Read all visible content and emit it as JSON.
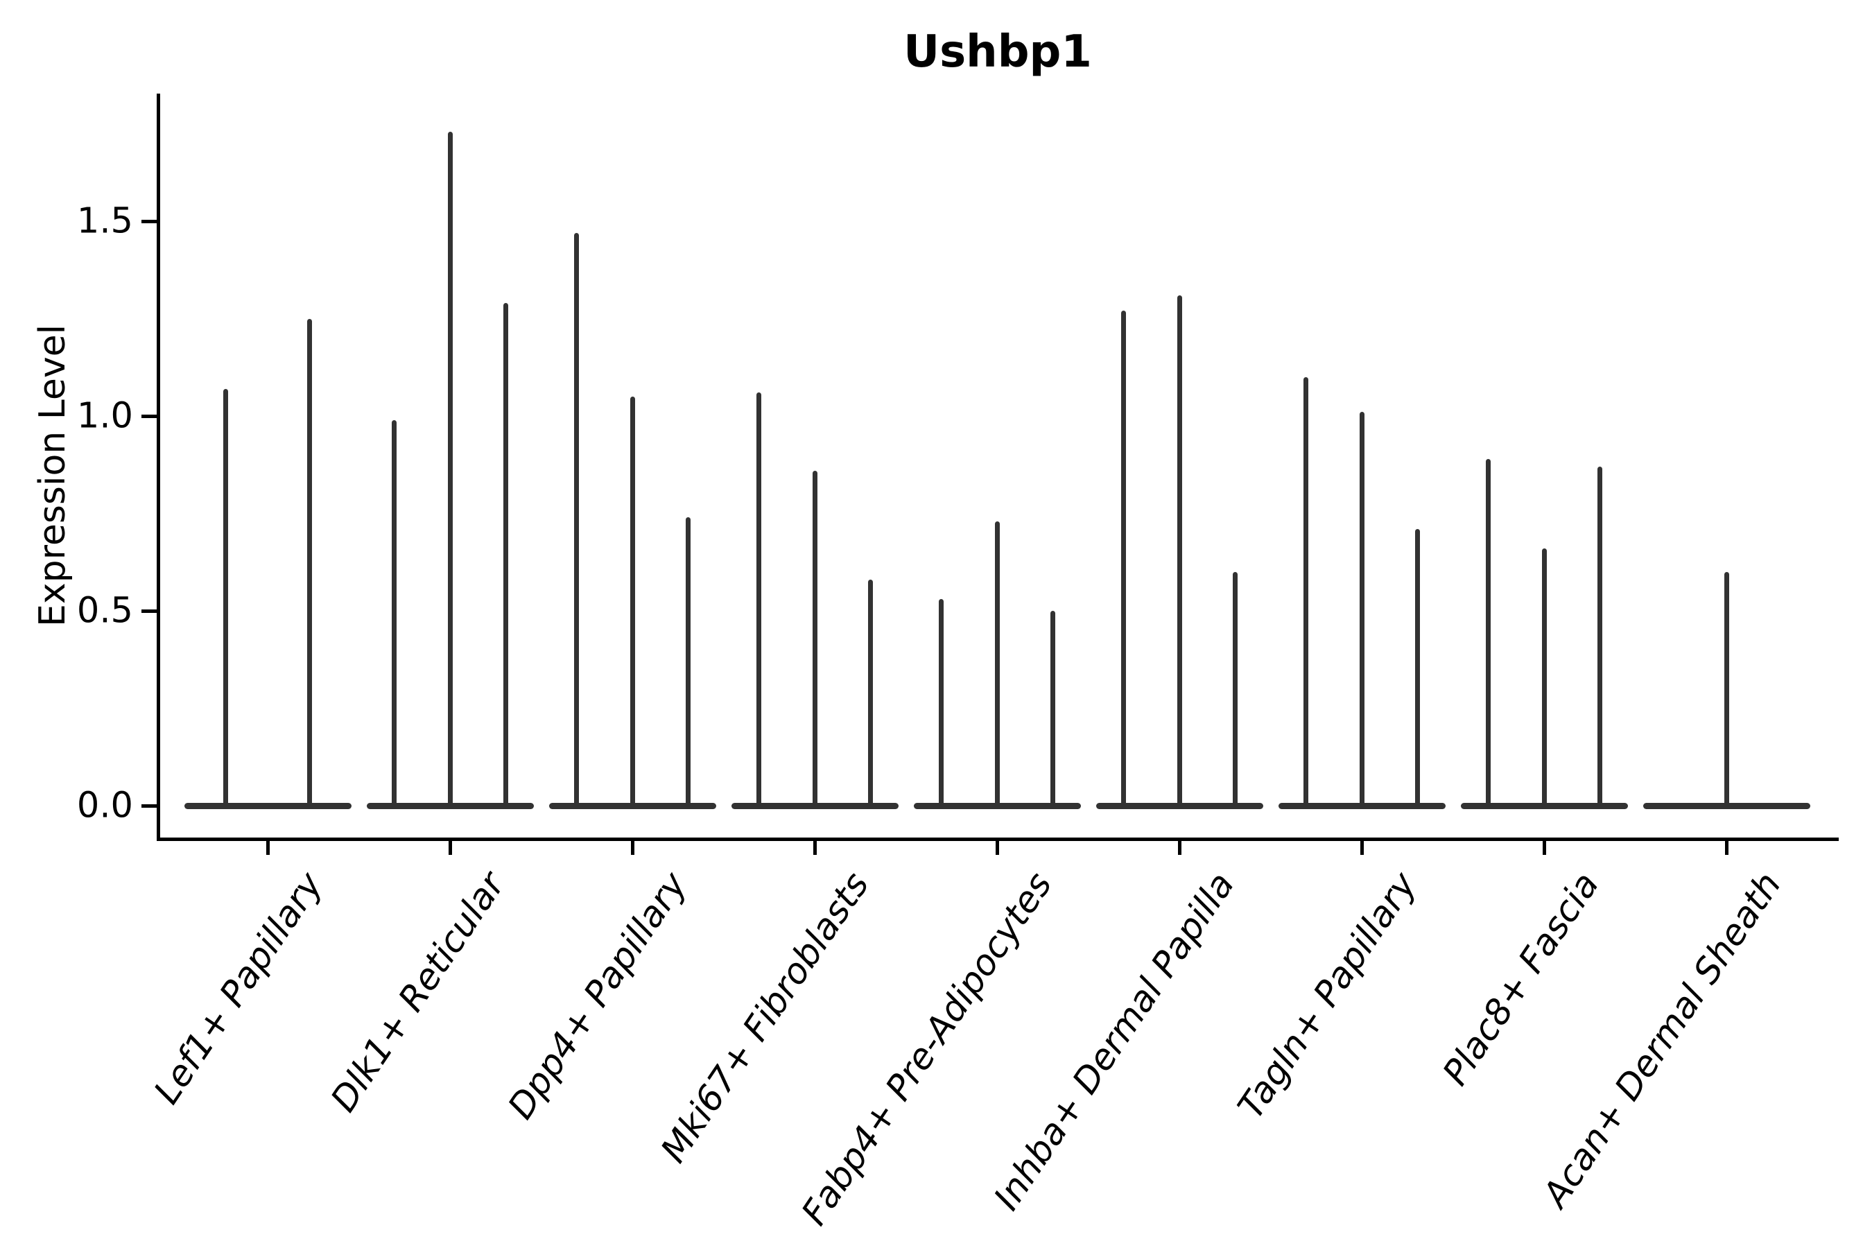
{
  "figure": {
    "title": "Ushbp1"
  },
  "axes": {
    "y_label": "Expression Level",
    "y_tick_labels": [
      "0.0",
      "0.5",
      "1.0",
      "1.5"
    ]
  },
  "chart_data": {
    "type": "violin",
    "title": "Ushbp1",
    "xlabel": "",
    "ylabel": "Expression Level",
    "ylim": [
      -0.09,
      1.83
    ],
    "yticks": [
      0,
      0.5,
      1.0,
      1.5
    ],
    "grid": false,
    "legend_position": "none",
    "violin_color": "#323232",
    "axis_color": "#000000",
    "background_color": "#ffffff",
    "description": "Split violin plot; each violin is a flat near-zero density body at 0 with a thin vertical spike reaching its maximum expression value.",
    "categories": [
      "Lef1+ Papillary",
      "Dlk1+ Reticular",
      "Dpp4+ Papillary",
      "Mki67+ Fibroblasts",
      "Fabp4+ Pre-Adipocytes",
      "Inhba+ Dermal Papilla",
      "Tagln+ Papillary",
      "Plac8+ Fascia",
      "Acan+ Dermal Sheath"
    ],
    "series": [
      {
        "category": "Lef1+ Papillary",
        "violin_maxima": [
          1.07,
          1.25
        ]
      },
      {
        "category": "Dlk1+ Reticular",
        "violin_maxima": [
          0.99,
          1.73,
          1.29
        ]
      },
      {
        "category": "Dpp4+ Papillary",
        "violin_maxima": [
          1.47,
          1.05,
          0.74
        ]
      },
      {
        "category": "Mki67+ Fibroblasts",
        "violin_maxima": [
          1.06,
          0.86,
          0.58
        ]
      },
      {
        "category": "Fabp4+ Pre-Adipocytes",
        "violin_maxima": [
          0.53,
          0.73,
          0.5
        ]
      },
      {
        "category": "Inhba+ Dermal Papilla",
        "violin_maxima": [
          1.27,
          1.31,
          0.6
        ]
      },
      {
        "category": "Tagln+ Papillary",
        "violin_maxima": [
          1.1,
          1.01,
          0.71
        ]
      },
      {
        "category": "Plac8+ Fascia",
        "violin_maxima": [
          0.89,
          0.66,
          0.87
        ]
      },
      {
        "category": "Acan+ Dermal Sheath",
        "violin_maxima": [
          0.6
        ]
      }
    ]
  }
}
